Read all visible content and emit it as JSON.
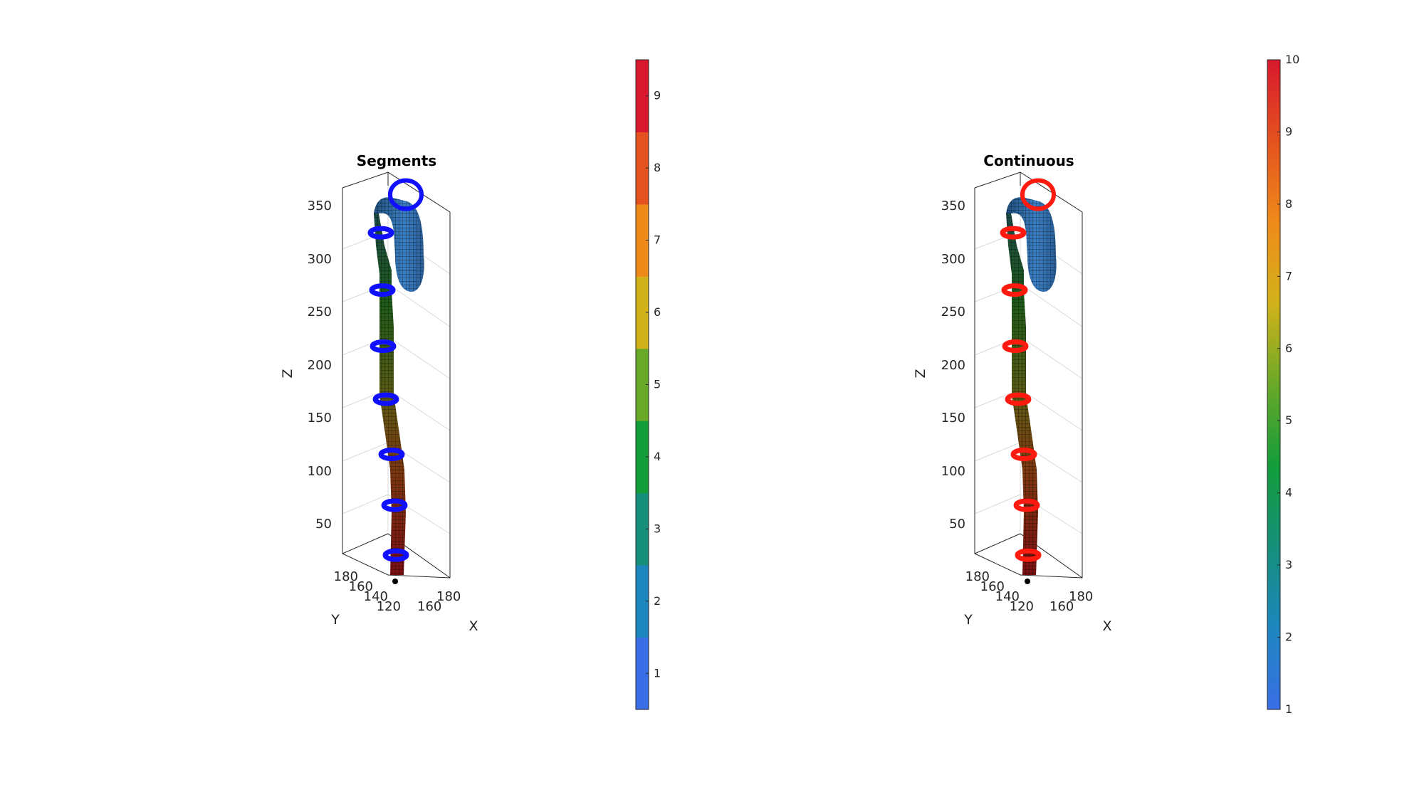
{
  "colors": {
    "ring_left": "#1010ff",
    "ring_right": "#ff1a10",
    "axis": "#262626",
    "grid": "#d9d9d9"
  },
  "chart_data": [
    {
      "type": "surface3d",
      "title": "Segments",
      "xlabel": "X",
      "ylabel": "Y",
      "zlabel": "Z",
      "z_ticks": [
        50,
        100,
        150,
        200,
        250,
        300,
        350
      ],
      "x_ticks": [
        160,
        180
      ],
      "y_ticks": [
        120,
        140,
        160,
        180
      ],
      "zlim": [
        10,
        370
      ],
      "grid": true,
      "ring_color": "ring_left",
      "ring_z": [
        18,
        65,
        113,
        165,
        215,
        268,
        322,
        358
      ],
      "colorbar": {
        "type": "discrete",
        "range": [
          0.5,
          9.5
        ],
        "ticks": [
          1,
          2,
          3,
          4,
          5,
          6,
          7,
          8,
          9
        ],
        "colors": [
          "#3a6ee6",
          "#1d86bf",
          "#158f7a",
          "#129c3a",
          "#6aa828",
          "#d2b21a",
          "#ef8a1a",
          "#e4521f",
          "#d8182e"
        ]
      }
    },
    {
      "type": "surface3d",
      "title": "Continuous",
      "xlabel": "X",
      "ylabel": "Y",
      "zlabel": "Z",
      "z_ticks": [
        50,
        100,
        150,
        200,
        250,
        300,
        350
      ],
      "x_ticks": [
        160,
        180
      ],
      "y_ticks": [
        120,
        140,
        160,
        180
      ],
      "zlim": [
        10,
        370
      ],
      "grid": true,
      "ring_color": "ring_right",
      "ring_z": [
        18,
        65,
        113,
        165,
        215,
        268,
        322,
        358
      ],
      "colorbar": {
        "type": "continuous",
        "range": [
          1,
          10
        ],
        "ticks": [
          1,
          2,
          3,
          4,
          5,
          6,
          7,
          8,
          9,
          10
        ],
        "colors": [
          "#3a6ee6",
          "#1d86bf",
          "#158f7a",
          "#129c3a",
          "#6aa828",
          "#d2b21a",
          "#ef8a1a",
          "#e4521f",
          "#d8182e"
        ]
      }
    }
  ]
}
